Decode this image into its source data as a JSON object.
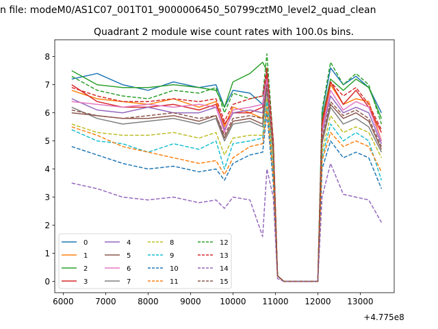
{
  "header_text": "n file: modeM0/AS1C07_001T01_9000006450_50799cztM0_level2_quad_clean",
  "chart_data": {
    "type": "line",
    "title": "Quadrant 2 module wise count rates with 100.0s bins.",
    "xlabel": "",
    "ylabel": "",
    "x_offset_label": "+4.775e8",
    "xlim": [
      5800,
      13800
    ],
    "ylim": [
      -0.4,
      8.6
    ],
    "x_ticks": [
      6000,
      7000,
      8000,
      9000,
      10000,
      11000,
      12000,
      13000
    ],
    "y_ticks": [
      0,
      1,
      2,
      3,
      4,
      5,
      6,
      7,
      8
    ],
    "grid": false,
    "legend_position": "lower-left",
    "x": [
      6200,
      6800,
      7400,
      8000,
      8600,
      9200,
      9600,
      9800,
      10000,
      10400,
      10700,
      10800,
      10950,
      11050,
      11200,
      11600,
      12000,
      12100,
      12300,
      12600,
      12900,
      13200,
      13500
    ],
    "series": [
      {
        "name": "0",
        "color": "#1f77b4",
        "dash": "solid",
        "values": [
          7.2,
          7.4,
          7.0,
          6.8,
          7.1,
          6.9,
          7.0,
          6.2,
          6.8,
          6.7,
          6.3,
          7.5,
          5.0,
          0.2,
          0.0,
          0.0,
          0.0,
          6.0,
          7.6,
          7.0,
          7.3,
          6.9,
          6.0
        ]
      },
      {
        "name": "1",
        "color": "#ff7f0e",
        "dash": "solid",
        "values": [
          6.8,
          6.5,
          6.4,
          6.3,
          6.5,
          6.2,
          6.4,
          5.5,
          6.2,
          6.0,
          5.8,
          7.2,
          4.8,
          0.2,
          0.0,
          0.0,
          0.0,
          5.5,
          7.0,
          6.3,
          6.5,
          6.4,
          5.0
        ]
      },
      {
        "name": "2",
        "color": "#2ca02c",
        "dash": "solid",
        "values": [
          7.5,
          7.0,
          6.9,
          6.9,
          7.0,
          6.9,
          6.8,
          6.2,
          7.1,
          7.4,
          7.8,
          7.5,
          5.0,
          0.2,
          0.0,
          0.0,
          0.0,
          5.8,
          7.2,
          6.8,
          7.2,
          6.9,
          5.8
        ]
      },
      {
        "name": "3",
        "color": "#d62728",
        "dash": "solid",
        "values": [
          7.0,
          6.4,
          6.2,
          6.2,
          6.3,
          6.1,
          6.3,
          5.6,
          6.0,
          6.0,
          6.2,
          7.4,
          5.0,
          0.2,
          0.0,
          0.0,
          0.0,
          5.6,
          7.1,
          6.3,
          6.8,
          6.2,
          5.3
        ]
      },
      {
        "name": "4",
        "color": "#9467bd",
        "dash": "solid",
        "values": [
          6.5,
          6.1,
          6.0,
          6.2,
          6.0,
          6.0,
          6.2,
          5.4,
          6.0,
          6.1,
          6.0,
          7.0,
          4.8,
          0.2,
          0.0,
          0.0,
          0.0,
          5.3,
          6.6,
          6.0,
          6.2,
          6.0,
          4.9
        ]
      },
      {
        "name": "5",
        "color": "#8c564b",
        "dash": "solid",
        "values": [
          6.0,
          5.9,
          5.8,
          5.8,
          5.9,
          5.7,
          5.9,
          5.1,
          5.7,
          5.8,
          5.6,
          6.9,
          4.6,
          0.2,
          0.0,
          0.0,
          0.0,
          5.0,
          6.3,
          5.8,
          6.0,
          5.7,
          4.7
        ]
      },
      {
        "name": "6",
        "color": "#e377c2",
        "dash": "solid",
        "values": [
          6.4,
          6.3,
          6.2,
          6.3,
          6.2,
          6.3,
          6.2,
          5.3,
          6.1,
          6.2,
          6.3,
          7.2,
          4.9,
          0.2,
          0.0,
          0.0,
          0.0,
          5.4,
          6.8,
          6.1,
          6.4,
          6.2,
          5.0
        ]
      },
      {
        "name": "7",
        "color": "#7f7f7f",
        "dash": "solid",
        "values": [
          6.2,
          5.8,
          5.6,
          5.7,
          5.8,
          5.6,
          5.8,
          5.0,
          5.6,
          5.7,
          5.5,
          6.8,
          4.5,
          0.2,
          0.0,
          0.0,
          0.0,
          4.9,
          6.2,
          5.6,
          5.8,
          5.5,
          4.6
        ]
      },
      {
        "name": "8",
        "color": "#bcbd22",
        "dash": "dashed",
        "values": [
          5.6,
          5.3,
          5.2,
          5.2,
          5.3,
          5.1,
          5.3,
          4.5,
          5.1,
          5.2,
          5.2,
          6.5,
          4.3,
          0.2,
          0.0,
          0.0,
          0.0,
          4.6,
          5.9,
          5.3,
          5.5,
          5.3,
          4.4
        ]
      },
      {
        "name": "9",
        "color": "#17becf",
        "dash": "dashed",
        "values": [
          5.4,
          5.0,
          4.9,
          4.6,
          4.9,
          4.7,
          5.0,
          4.0,
          4.9,
          5.0,
          5.1,
          6.4,
          4.0,
          0.2,
          0.0,
          0.0,
          0.0,
          4.4,
          5.6,
          5.0,
          5.3,
          5.0,
          3.6
        ]
      },
      {
        "name": "10",
        "color": "#1f77b4",
        "dash": "dashed",
        "values": [
          4.8,
          4.5,
          4.2,
          4.0,
          4.1,
          3.9,
          4.0,
          3.6,
          4.2,
          4.5,
          4.6,
          6.0,
          3.5,
          0.2,
          0.0,
          0.0,
          0.0,
          4.0,
          5.0,
          4.4,
          4.6,
          4.4,
          3.3
        ]
      },
      {
        "name": "11",
        "color": "#ff7f0e",
        "dash": "dashed",
        "values": [
          5.5,
          5.2,
          4.8,
          4.6,
          4.4,
          4.2,
          4.3,
          3.8,
          4.4,
          4.8,
          4.9,
          6.2,
          3.8,
          0.2,
          0.0,
          0.0,
          0.0,
          4.3,
          5.3,
          4.8,
          5.0,
          4.8,
          3.9
        ]
      },
      {
        "name": "12",
        "color": "#2ca02c",
        "dash": "dashed",
        "values": [
          7.3,
          6.8,
          6.6,
          6.5,
          6.8,
          6.7,
          6.9,
          6.0,
          6.7,
          6.5,
          6.6,
          8.1,
          5.0,
          0.2,
          0.0,
          0.0,
          0.0,
          6.1,
          7.8,
          7.0,
          7.4,
          7.0,
          5.6
        ]
      },
      {
        "name": "13",
        "color": "#d62728",
        "dash": "dashed",
        "values": [
          6.9,
          6.6,
          6.4,
          6.4,
          6.5,
          6.4,
          6.5,
          5.7,
          6.3,
          6.5,
          6.6,
          7.6,
          5.0,
          0.2,
          0.0,
          0.0,
          0.0,
          5.7,
          7.1,
          6.6,
          6.9,
          6.3,
          5.4
        ]
      },
      {
        "name": "14",
        "color": "#9467bd",
        "dash": "dashed",
        "values": [
          3.5,
          3.3,
          3.0,
          2.9,
          3.0,
          2.8,
          2.9,
          2.6,
          3.0,
          2.9,
          1.6,
          4.0,
          3.0,
          0.1,
          0.0,
          0.0,
          0.0,
          3.0,
          4.2,
          3.1,
          3.0,
          2.9,
          2.1
        ]
      },
      {
        "name": "15",
        "color": "#8c564b",
        "dash": "dashed",
        "values": [
          6.1,
          5.9,
          5.8,
          5.9,
          6.0,
          5.8,
          5.9,
          5.2,
          5.8,
          5.9,
          5.8,
          7.0,
          4.7,
          0.2,
          0.0,
          0.0,
          0.0,
          5.1,
          6.4,
          5.9,
          6.1,
          5.8,
          4.8
        ]
      }
    ]
  }
}
